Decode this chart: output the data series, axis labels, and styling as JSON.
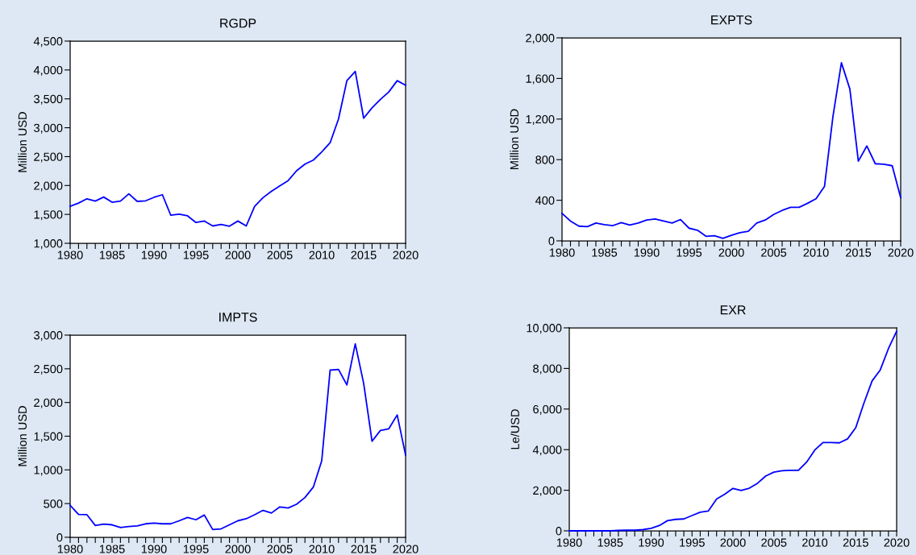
{
  "chart_data": [
    {
      "type": "line",
      "title": "RGDP",
      "ylabel": "Million USD",
      "x": [
        1980,
        1981,
        1982,
        1983,
        1984,
        1985,
        1986,
        1987,
        1988,
        1989,
        1990,
        1991,
        1992,
        1993,
        1994,
        1995,
        1996,
        1997,
        1998,
        1999,
        2000,
        2001,
        2002,
        2003,
        2004,
        2005,
        2006,
        2007,
        2008,
        2009,
        2010,
        2011,
        2012,
        2013,
        2014,
        2015,
        2016,
        2017,
        2018,
        2019,
        2020
      ],
      "series": [
        {
          "color": "#0000ff",
          "values": [
            1640,
            1695,
            1770,
            1730,
            1800,
            1710,
            1730,
            1855,
            1725,
            1735,
            1795,
            1840,
            1485,
            1505,
            1475,
            1360,
            1385,
            1300,
            1325,
            1295,
            1385,
            1300,
            1640,
            1790,
            1900,
            1995,
            2085,
            2255,
            2370,
            2440,
            2580,
            2740,
            3150,
            3815,
            3975,
            3165,
            3345,
            3490,
            3620,
            3815,
            3735
          ]
        }
      ],
      "xlim": [
        1980,
        2020
      ],
      "ylim": [
        1000,
        4500
      ],
      "yticks": [
        {
          "value": 1000,
          "label": "1,000"
        },
        {
          "value": 1500,
          "label": "1,500"
        },
        {
          "value": 2000,
          "label": "2,000"
        },
        {
          "value": 2500,
          "label": "2,500"
        },
        {
          "value": 3000,
          "label": "3,000"
        },
        {
          "value": 3500,
          "label": "3,500"
        },
        {
          "value": 4000,
          "label": "4,000"
        },
        {
          "value": 4500,
          "label": "4,500"
        }
      ],
      "xticks": [
        1980,
        {
          "value": 1981,
          "label": null
        },
        {
          "value": 1982,
          "label": null
        },
        {
          "value": 1983,
          "label": null
        },
        {
          "value": 1984,
          "label": null
        },
        1985,
        {
          "value": 1986,
          "label": null
        },
        {
          "value": 1987,
          "label": null
        },
        {
          "value": 1988,
          "label": null
        },
        {
          "value": 1989,
          "label": null
        },
        1990,
        {
          "value": 1991,
          "label": null
        },
        {
          "value": 1992,
          "label": null
        },
        {
          "value": 1993,
          "label": null
        },
        {
          "value": 1994,
          "label": null
        },
        1995,
        {
          "value": 1996,
          "label": null
        },
        {
          "value": 1997,
          "label": null
        },
        {
          "value": 1998,
          "label": null
        },
        {
          "value": 1999,
          "label": null
        },
        2000,
        {
          "value": 2001,
          "label": null
        },
        {
          "value": 2002,
          "label": null
        },
        {
          "value": 2003,
          "label": null
        },
        {
          "value": 2004,
          "label": null
        },
        2005,
        {
          "value": 2006,
          "label": null
        },
        {
          "value": 2007,
          "label": null
        },
        {
          "value": 2008,
          "label": null
        },
        {
          "value": 2009,
          "label": null
        },
        2010,
        {
          "value": 2011,
          "label": null
        },
        {
          "value": 2012,
          "label": null
        },
        {
          "value": 2013,
          "label": null
        },
        {
          "value": 2014,
          "label": null
        },
        2015,
        {
          "value": 2016,
          "label": null
        },
        {
          "value": 2017,
          "label": null
        },
        {
          "value": 2018,
          "label": null
        },
        {
          "value": 2019,
          "label": null
        },
        2020
      ],
      "grid": false,
      "marker": "none",
      "line_style": "solid"
    },
    {
      "type": "line",
      "title": "EXPTS",
      "ylabel": "Million USD",
      "x": [
        1980,
        1981,
        1982,
        1983,
        1984,
        1985,
        1986,
        1987,
        1988,
        1989,
        1990,
        1991,
        1992,
        1993,
        1994,
        1995,
        1996,
        1997,
        1998,
        1999,
        2000,
        2001,
        2002,
        2003,
        2004,
        2005,
        2006,
        2007,
        2008,
        2009,
        2010,
        2011,
        2012,
        2013,
        2014,
        2015,
        2016,
        2017,
        2018,
        2019,
        2020
      ],
      "series": [
        {
          "color": "#0000ff",
          "values": [
            270,
            195,
            145,
            140,
            175,
            160,
            150,
            180,
            155,
            175,
            205,
            215,
            195,
            175,
            210,
            125,
            105,
            45,
            50,
            25,
            55,
            80,
            95,
            175,
            205,
            260,
            300,
            330,
            330,
            370,
            415,
            535,
            1225,
            1755,
            1495,
            785,
            935,
            760,
            755,
            740,
            425
          ]
        }
      ],
      "xlim": [
        1980,
        2020
      ],
      "ylim": [
        0,
        2000
      ],
      "yticks": [
        0,
        400,
        800,
        {
          "value": 1200,
          "label": "1,200"
        },
        {
          "value": 1600,
          "label": "1,600"
        },
        {
          "value": 2000,
          "label": "2,000"
        }
      ],
      "xticks": [
        1980,
        {
          "value": 1981,
          "label": null
        },
        {
          "value": 1982,
          "label": null
        },
        {
          "value": 1983,
          "label": null
        },
        {
          "value": 1984,
          "label": null
        },
        1985,
        {
          "value": 1986,
          "label": null
        },
        {
          "value": 1987,
          "label": null
        },
        {
          "value": 1988,
          "label": null
        },
        {
          "value": 1989,
          "label": null
        },
        1990,
        {
          "value": 1991,
          "label": null
        },
        {
          "value": 1992,
          "label": null
        },
        {
          "value": 1993,
          "label": null
        },
        {
          "value": 1994,
          "label": null
        },
        1995,
        {
          "value": 1996,
          "label": null
        },
        {
          "value": 1997,
          "label": null
        },
        {
          "value": 1998,
          "label": null
        },
        {
          "value": 1999,
          "label": null
        },
        2000,
        {
          "value": 2001,
          "label": null
        },
        {
          "value": 2002,
          "label": null
        },
        {
          "value": 2003,
          "label": null
        },
        {
          "value": 2004,
          "label": null
        },
        2005,
        {
          "value": 2006,
          "label": null
        },
        {
          "value": 2007,
          "label": null
        },
        {
          "value": 2008,
          "label": null
        },
        {
          "value": 2009,
          "label": null
        },
        2010,
        {
          "value": 2011,
          "label": null
        },
        {
          "value": 2012,
          "label": null
        },
        {
          "value": 2013,
          "label": null
        },
        {
          "value": 2014,
          "label": null
        },
        2015,
        {
          "value": 2016,
          "label": null
        },
        {
          "value": 2017,
          "label": null
        },
        {
          "value": 2018,
          "label": null
        },
        {
          "value": 2019,
          "label": null
        },
        2020
      ],
      "grid": false,
      "marker": "none",
      "line_style": "solid"
    },
    {
      "type": "line",
      "title": "IMPTS",
      "ylabel": "Million USD",
      "x": [
        1980,
        1981,
        1982,
        1983,
        1984,
        1985,
        1986,
        1987,
        1988,
        1989,
        1990,
        1991,
        1992,
        1993,
        1994,
        1995,
        1996,
        1997,
        1998,
        1999,
        2000,
        2001,
        2002,
        2003,
        2004,
        2005,
        2006,
        2007,
        2008,
        2009,
        2010,
        2011,
        2012,
        2013,
        2014,
        2015,
        2016,
        2017,
        2018,
        2019,
        2020
      ],
      "series": [
        {
          "color": "#0000ff",
          "values": [
            475,
            340,
            335,
            175,
            195,
            185,
            145,
            160,
            170,
            200,
            210,
            200,
            200,
            245,
            295,
            260,
            330,
            115,
            125,
            185,
            245,
            275,
            335,
            400,
            360,
            450,
            435,
            490,
            590,
            745,
            1135,
            2480,
            2490,
            2260,
            2870,
            2285,
            1425,
            1585,
            1610,
            1815,
            1220
          ]
        }
      ],
      "xlim": [
        1980,
        2020
      ],
      "ylim": [
        0,
        3000
      ],
      "yticks": [
        0,
        500,
        {
          "value": 1000,
          "label": "1,000"
        },
        {
          "value": 1500,
          "label": "1,500"
        },
        {
          "value": 2000,
          "label": "2,000"
        },
        {
          "value": 2500,
          "label": "2,500"
        },
        {
          "value": 3000,
          "label": "3,000"
        }
      ],
      "xticks": [
        1980,
        {
          "value": 1981,
          "label": null
        },
        {
          "value": 1982,
          "label": null
        },
        {
          "value": 1983,
          "label": null
        },
        {
          "value": 1984,
          "label": null
        },
        1985,
        {
          "value": 1986,
          "label": null
        },
        {
          "value": 1987,
          "label": null
        },
        {
          "value": 1988,
          "label": null
        },
        {
          "value": 1989,
          "label": null
        },
        1990,
        {
          "value": 1991,
          "label": null
        },
        {
          "value": 1992,
          "label": null
        },
        {
          "value": 1993,
          "label": null
        },
        {
          "value": 1994,
          "label": null
        },
        1995,
        {
          "value": 1996,
          "label": null
        },
        {
          "value": 1997,
          "label": null
        },
        {
          "value": 1998,
          "label": null
        },
        {
          "value": 1999,
          "label": null
        },
        2000,
        {
          "value": 2001,
          "label": null
        },
        {
          "value": 2002,
          "label": null
        },
        {
          "value": 2003,
          "label": null
        },
        {
          "value": 2004,
          "label": null
        },
        2005,
        {
          "value": 2006,
          "label": null
        },
        {
          "value": 2007,
          "label": null
        },
        {
          "value": 2008,
          "label": null
        },
        {
          "value": 2009,
          "label": null
        },
        2010,
        {
          "value": 2011,
          "label": null
        },
        {
          "value": 2012,
          "label": null
        },
        {
          "value": 2013,
          "label": null
        },
        {
          "value": 2014,
          "label": null
        },
        2015,
        {
          "value": 2016,
          "label": null
        },
        {
          "value": 2017,
          "label": null
        },
        {
          "value": 2018,
          "label": null
        },
        {
          "value": 2019,
          "label": null
        },
        2020
      ],
      "grid": false,
      "marker": "none",
      "line_style": "solid"
    },
    {
      "type": "line",
      "title": "EXR",
      "ylabel": "Le/USD",
      "x": [
        1980,
        1981,
        1982,
        1983,
        1984,
        1985,
        1986,
        1987,
        1988,
        1989,
        1990,
        1991,
        1992,
        1993,
        1994,
        1995,
        1996,
        1997,
        1998,
        1999,
        2000,
        2001,
        2002,
        2003,
        2004,
        2005,
        2006,
        2007,
        2008,
        2009,
        2010,
        2011,
        2012,
        2013,
        2014,
        2015,
        2016,
        2017,
        2018,
        2019,
        2020
      ],
      "series": [
        {
          "color": "#0000ff",
          "values": [
            0,
            0,
            0,
            0,
            0,
            0,
            20,
            30,
            30,
            60,
            125,
            260,
            500,
            565,
            585,
            755,
            920,
            980,
            1565,
            1805,
            2090,
            1985,
            2100,
            2345,
            2700,
            2890,
            2960,
            2985,
            2980,
            3385,
            3980,
            4350,
            4350,
            4335,
            4530,
            5080,
            6290,
            7385,
            7930,
            8980,
            9830
          ]
        }
      ],
      "xlim": [
        1980,
        2020
      ],
      "ylim": [
        0,
        10000
      ],
      "yticks": [
        0,
        {
          "value": 2000,
          "label": "2,000"
        },
        {
          "value": 4000,
          "label": "4,000"
        },
        {
          "value": 6000,
          "label": "6,000"
        },
        {
          "value": 8000,
          "label": "8,000"
        },
        {
          "value": 10000,
          "label": "10,000"
        }
      ],
      "xticks": [
        1980,
        {
          "value": 1981,
          "label": null
        },
        {
          "value": 1982,
          "label": null
        },
        {
          "value": 1983,
          "label": null
        },
        {
          "value": 1984,
          "label": null
        },
        1985,
        {
          "value": 1986,
          "label": null
        },
        {
          "value": 1987,
          "label": null
        },
        {
          "value": 1988,
          "label": null
        },
        {
          "value": 1989,
          "label": null
        },
        1990,
        {
          "value": 1991,
          "label": null
        },
        {
          "value": 1992,
          "label": null
        },
        {
          "value": 1993,
          "label": null
        },
        {
          "value": 1994,
          "label": null
        },
        1995,
        {
          "value": 1996,
          "label": null
        },
        {
          "value": 1997,
          "label": null
        },
        {
          "value": 1998,
          "label": null
        },
        {
          "value": 1999,
          "label": null
        },
        2000,
        {
          "value": 2001,
          "label": null
        },
        {
          "value": 2002,
          "label": null
        },
        {
          "value": 2003,
          "label": null
        },
        {
          "value": 2004,
          "label": null
        },
        2005,
        {
          "value": 2006,
          "label": null
        },
        {
          "value": 2007,
          "label": null
        },
        {
          "value": 2008,
          "label": null
        },
        {
          "value": 2009,
          "label": null
        },
        2010,
        {
          "value": 2011,
          "label": null
        },
        {
          "value": 2012,
          "label": null
        },
        {
          "value": 2013,
          "label": null
        },
        {
          "value": 2014,
          "label": null
        },
        2015,
        {
          "value": 2016,
          "label": null
        },
        {
          "value": 2017,
          "label": null
        },
        {
          "value": 2018,
          "label": null
        },
        {
          "value": 2019,
          "label": null
        },
        2020
      ],
      "grid": false,
      "marker": "none",
      "line_style": "solid"
    }
  ]
}
